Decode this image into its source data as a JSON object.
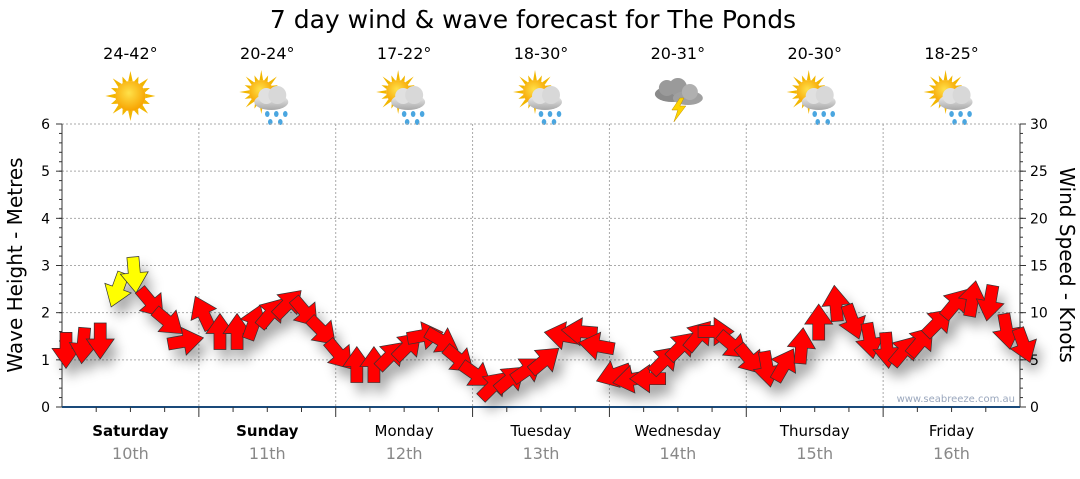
{
  "chart_data": {
    "type": "scatter",
    "title": "7 day wind & wave forecast for The Ponds",
    "ylabel_left": "Wave Height - Metres",
    "ylabel_right": "Wind Speed - Knots",
    "ylim_left": [
      0,
      6
    ],
    "ylim_right": [
      0,
      30
    ],
    "yticks_left": [
      "0",
      "1",
      "2",
      "3",
      "4",
      "5",
      "6"
    ],
    "yticks_right": [
      "0",
      "5",
      "10",
      "15",
      "20",
      "25",
      "30"
    ],
    "grid": true,
    "watermark": "www.seabreeze.com.au",
    "days": [
      {
        "name": "Saturday",
        "date": "10th",
        "bold": true,
        "temp": "24-42°",
        "icon": "sunny"
      },
      {
        "name": "Sunday",
        "date": "11th",
        "bold": true,
        "temp": "20-24°",
        "icon": "sun-showers"
      },
      {
        "name": "Monday",
        "date": "12th",
        "bold": false,
        "temp": "17-22°",
        "icon": "sun-showers"
      },
      {
        "name": "Tuesday",
        "date": "13th",
        "bold": false,
        "temp": "18-30°",
        "icon": "sun-showers"
      },
      {
        "name": "Wednesday",
        "date": "14th",
        "bold": false,
        "temp": "20-31°",
        "icon": "thunderstorm"
      },
      {
        "name": "Thursday",
        "date": "15th",
        "bold": false,
        "temp": "20-30°",
        "icon": "sun-showers"
      },
      {
        "name": "Friday",
        "date": "16th",
        "bold": false,
        "temp": "18-25°",
        "icon": "sun-showers"
      }
    ],
    "wind_interval_hours": 3,
    "wind_series": {
      "name": "Wind (knots, arrow heading degrees)",
      "colors": {
        "normal": "#ff0000",
        "strong": "#ffff00"
      },
      "speed_kn": [
        6,
        6.5,
        7,
        12.4,
        14,
        11,
        9,
        7,
        10,
        8,
        8,
        9,
        10,
        11,
        10,
        8,
        5.5,
        4.5,
        4.5,
        5.5,
        6.5,
        7.6,
        7,
        5,
        3.4,
        2.3,
        3,
        4,
        5,
        7.6,
        8,
        6.5,
        3.4,
        2.9,
        3,
        5,
        6.5,
        7.6,
        8,
        6.5,
        5,
        4,
        4.5,
        6.5,
        9,
        11,
        9,
        7,
        6,
        6,
        7,
        9,
        11,
        11.5,
        11,
        8,
        6.5
      ],
      "heading_deg": [
        180,
        185,
        180,
        200,
        175,
        140,
        130,
        80,
        335,
        0,
        0,
        20,
        40,
        45,
        140,
        135,
        140,
        0,
        0,
        45,
        45,
        80,
        120,
        130,
        125,
        45,
        50,
        55,
        50,
        280,
        275,
        280,
        250,
        260,
        270,
        45,
        45,
        40,
        90,
        130,
        140,
        170,
        30,
        5,
        0,
        355,
        160,
        170,
        175,
        40,
        40,
        45,
        40,
        10,
        190,
        170,
        160
      ],
      "strong": [
        false,
        false,
        false,
        true,
        true,
        false,
        false,
        false,
        false,
        false,
        false,
        false,
        false,
        false,
        false,
        false,
        false,
        false,
        false,
        false,
        false,
        false,
        false,
        false,
        false,
        false,
        false,
        false,
        false,
        false,
        false,
        false,
        false,
        false,
        false,
        false,
        false,
        false,
        false,
        false,
        false,
        false,
        false,
        false,
        false,
        false,
        false,
        false,
        false,
        false,
        false,
        false,
        false,
        false,
        false,
        false,
        false
      ]
    }
  }
}
